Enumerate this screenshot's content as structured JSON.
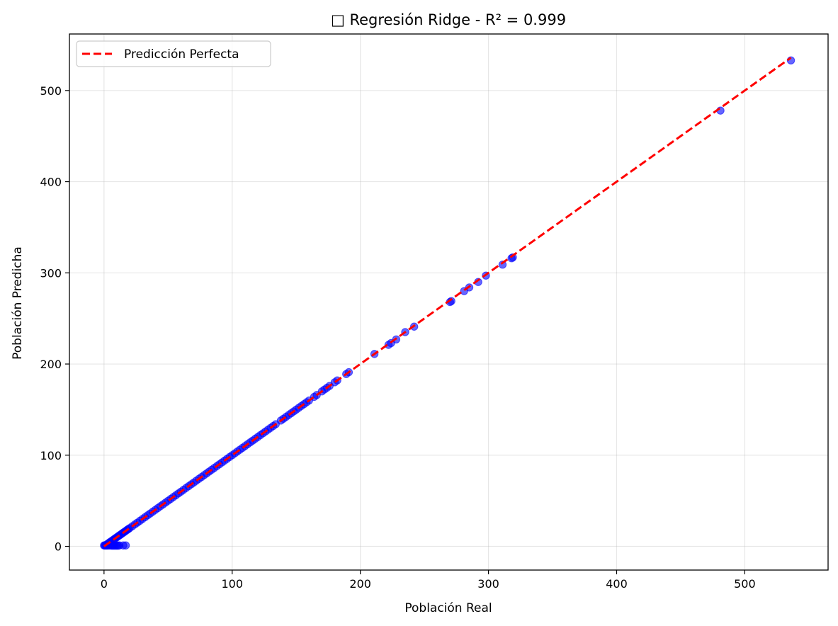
{
  "chart_data": {
    "type": "scatter",
    "title": "□ Regresión Ridge - R² = 0.999",
    "xlabel": "Población Real",
    "ylabel": "Población Predicha",
    "xlim": [
      -27,
      565
    ],
    "ylim": [
      -26,
      562
    ],
    "xticks": [
      0,
      100,
      200,
      300,
      400,
      500
    ],
    "yticks": [
      0,
      100,
      200,
      300,
      400,
      500
    ],
    "xtick_labels": [
      "0",
      "100",
      "200",
      "300",
      "400",
      "500"
    ],
    "ytick_labels": [
      "0",
      "100",
      "200",
      "300",
      "400",
      "500"
    ],
    "grid": true,
    "legend": {
      "placement": "top-left",
      "entries": [
        {
          "label": "Predicción Perfecta",
          "style": "dashed-line",
          "color": "#ff0000"
        }
      ]
    },
    "reference_line": {
      "name": "Predicción Perfecta",
      "x": [
        0,
        536
      ],
      "y": [
        0,
        536
      ],
      "color": "#ff0000",
      "dash": true
    },
    "scatter_color": "#0000ff",
    "points": [
      [
        0,
        1
      ],
      [
        0.5,
        1
      ],
      [
        1,
        1
      ],
      [
        1.5,
        1
      ],
      [
        2,
        1
      ],
      [
        2.5,
        1
      ],
      [
        3,
        1
      ],
      [
        4,
        1
      ],
      [
        5,
        1
      ],
      [
        6,
        0.8
      ],
      [
        7,
        0.8
      ],
      [
        8,
        0.8
      ],
      [
        9,
        0.8
      ],
      [
        10,
        0.8
      ],
      [
        11,
        0.8
      ],
      [
        12,
        1
      ],
      [
        15,
        1
      ],
      [
        17,
        1
      ],
      [
        2,
        2
      ],
      [
        3,
        3
      ],
      [
        4,
        4
      ],
      [
        5,
        5
      ],
      [
        6,
        6
      ],
      [
        7,
        7
      ],
      [
        8,
        8
      ],
      [
        9,
        9
      ],
      [
        10,
        10
      ],
      [
        11,
        11
      ],
      [
        12,
        12
      ],
      [
        13,
        13
      ],
      [
        14,
        14
      ],
      [
        15,
        15
      ],
      [
        16,
        16
      ],
      [
        17,
        17
      ],
      [
        18,
        18
      ],
      [
        19,
        19
      ],
      [
        20,
        20
      ],
      [
        22,
        22
      ],
      [
        24,
        24
      ],
      [
        26,
        26
      ],
      [
        28,
        28
      ],
      [
        30,
        30
      ],
      [
        32,
        32
      ],
      [
        34,
        34
      ],
      [
        36,
        36
      ],
      [
        38,
        38
      ],
      [
        40,
        40
      ],
      [
        42,
        42
      ],
      [
        44,
        44
      ],
      [
        46,
        46
      ],
      [
        48,
        48
      ],
      [
        50,
        50
      ],
      [
        52,
        52
      ],
      [
        54,
        54
      ],
      [
        56,
        56
      ],
      [
        58,
        58
      ],
      [
        60,
        60
      ],
      [
        62,
        62
      ],
      [
        64,
        64
      ],
      [
        66,
        66
      ],
      [
        68,
        68
      ],
      [
        70,
        70
      ],
      [
        72,
        72
      ],
      [
        74,
        74
      ],
      [
        76,
        76
      ],
      [
        78,
        78
      ],
      [
        80,
        80
      ],
      [
        82,
        82
      ],
      [
        84,
        84
      ],
      [
        86,
        86
      ],
      [
        88,
        88
      ],
      [
        90,
        90
      ],
      [
        92,
        92
      ],
      [
        94,
        94
      ],
      [
        96,
        96
      ],
      [
        98,
        98
      ],
      [
        100,
        100
      ],
      [
        102,
        102
      ],
      [
        104,
        104
      ],
      [
        106,
        106
      ],
      [
        108,
        108
      ],
      [
        110,
        110
      ],
      [
        112,
        112
      ],
      [
        114,
        114
      ],
      [
        116,
        116
      ],
      [
        118,
        118
      ],
      [
        120,
        120
      ],
      [
        122,
        122
      ],
      [
        124,
        124
      ],
      [
        126,
        126
      ],
      [
        128,
        128
      ],
      [
        130,
        130
      ],
      [
        132,
        132
      ],
      [
        134,
        134
      ],
      [
        138,
        138
      ],
      [
        140,
        140
      ],
      [
        142,
        142
      ],
      [
        144,
        144
      ],
      [
        146,
        146
      ],
      [
        148,
        148
      ],
      [
        150,
        150
      ],
      [
        152,
        152
      ],
      [
        154,
        154
      ],
      [
        156,
        156
      ],
      [
        158,
        158
      ],
      [
        160,
        160
      ],
      [
        164,
        164
      ],
      [
        166,
        166
      ],
      [
        170,
        170
      ],
      [
        172,
        172
      ],
      [
        174,
        174
      ],
      [
        176,
        176
      ],
      [
        180,
        180
      ],
      [
        182,
        182
      ],
      [
        189,
        189
      ],
      [
        191,
        191
      ],
      [
        211,
        211
      ],
      [
        222,
        221
      ],
      [
        224,
        223
      ],
      [
        228,
        227
      ],
      [
        235,
        235
      ],
      [
        242,
        241
      ],
      [
        270,
        268
      ],
      [
        271,
        269
      ],
      [
        281,
        280
      ],
      [
        285,
        284
      ],
      [
        292,
        290
      ],
      [
        298,
        297
      ],
      [
        311,
        309
      ],
      [
        318,
        316
      ],
      [
        319,
        317
      ],
      [
        481,
        478
      ],
      [
        536,
        533
      ]
    ]
  }
}
